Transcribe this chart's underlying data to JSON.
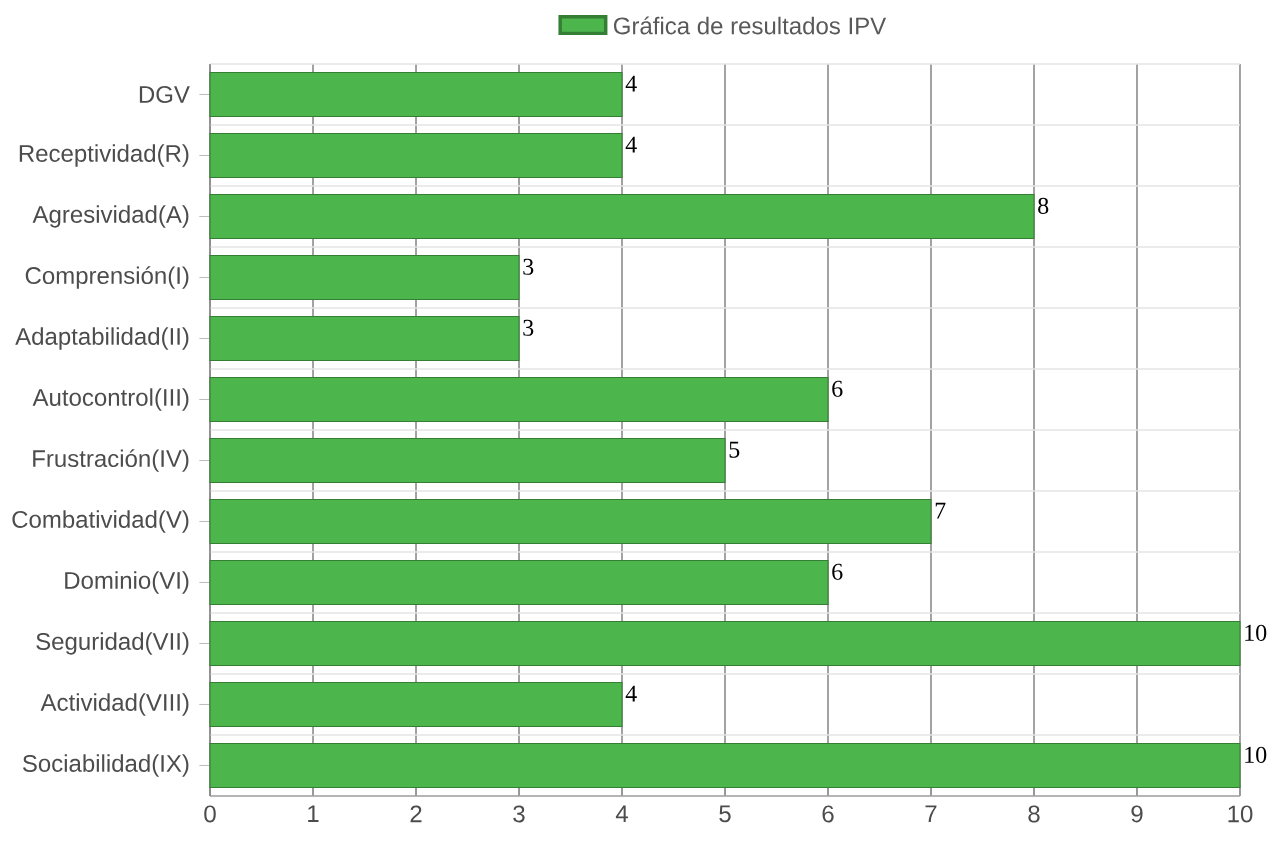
{
  "chart_data": {
    "type": "bar",
    "orientation": "horizontal",
    "categories": [
      "DGV",
      "Receptividad(R)",
      "Agresividad(A)",
      "Comprensión(I)",
      "Adaptabilidad(II)",
      "Autocontrol(III)",
      "Frustración(IV)",
      "Combatividad(V)",
      "Dominio(VI)",
      "Seguridad(VII)",
      "Actividad(VIII)",
      "Sociabilidad(IX)"
    ],
    "series": [
      {
        "name": "Gráfica de resultados IPV",
        "color": "#4cb64c",
        "values": [
          4,
          4,
          8,
          3,
          3,
          6,
          5,
          7,
          6,
          10,
          4,
          10
        ]
      }
    ],
    "xlim": [
      0,
      10
    ],
    "xticks": [
      0,
      1,
      2,
      3,
      4,
      5,
      6,
      7,
      8,
      9,
      10
    ],
    "grid": true,
    "legend": "top",
    "data_labels": true
  }
}
